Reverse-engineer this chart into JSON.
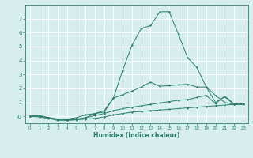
{
  "xlabel": "Humidex (Indice chaleur)",
  "x": [
    0,
    1,
    2,
    3,
    4,
    5,
    6,
    7,
    8,
    9,
    10,
    11,
    12,
    13,
    14,
    15,
    16,
    17,
    18,
    19,
    20,
    21,
    22,
    23
  ],
  "line1": [
    0.0,
    0.0,
    -0.1,
    -0.25,
    -0.3,
    -0.25,
    -0.2,
    -0.15,
    -0.05,
    0.1,
    0.2,
    0.3,
    0.35,
    0.4,
    0.45,
    0.5,
    0.55,
    0.6,
    0.65,
    0.7,
    0.75,
    0.8,
    0.85,
    0.9
  ],
  "line2": [
    0.0,
    0.05,
    -0.1,
    -0.2,
    -0.25,
    -0.2,
    -0.1,
    0.05,
    0.2,
    0.4,
    0.55,
    0.65,
    0.75,
    0.85,
    0.95,
    1.05,
    1.15,
    1.2,
    1.35,
    1.5,
    0.9,
    1.45,
    0.9,
    0.9
  ],
  "line3": [
    0.0,
    0.05,
    -0.1,
    -0.2,
    -0.2,
    -0.1,
    0.1,
    0.2,
    0.4,
    1.3,
    1.55,
    1.8,
    2.1,
    2.45,
    2.15,
    2.2,
    2.25,
    2.3,
    2.1,
    2.1,
    1.0,
    1.4,
    0.85,
    0.85
  ],
  "line4": [
    0.0,
    -0.05,
    -0.15,
    -0.3,
    -0.25,
    -0.25,
    -0.1,
    0.2,
    0.3,
    1.3,
    3.3,
    5.1,
    6.3,
    6.5,
    7.5,
    7.5,
    5.9,
    4.2,
    3.5,
    2.1,
    1.5,
    1.0,
    0.85,
    0.85
  ],
  "line_color": "#2e7d6e",
  "bg_color": "#d6eeee",
  "grid_color": "#ffffff",
  "ylim": [
    -0.5,
    8.0
  ],
  "xlim": [
    -0.5,
    23.5
  ],
  "yticks": [
    0,
    1,
    2,
    3,
    4,
    5,
    6,
    7
  ],
  "ytick_labels": [
    "-0",
    "1",
    "2",
    "3",
    "4",
    "5",
    "6",
    "7"
  ]
}
